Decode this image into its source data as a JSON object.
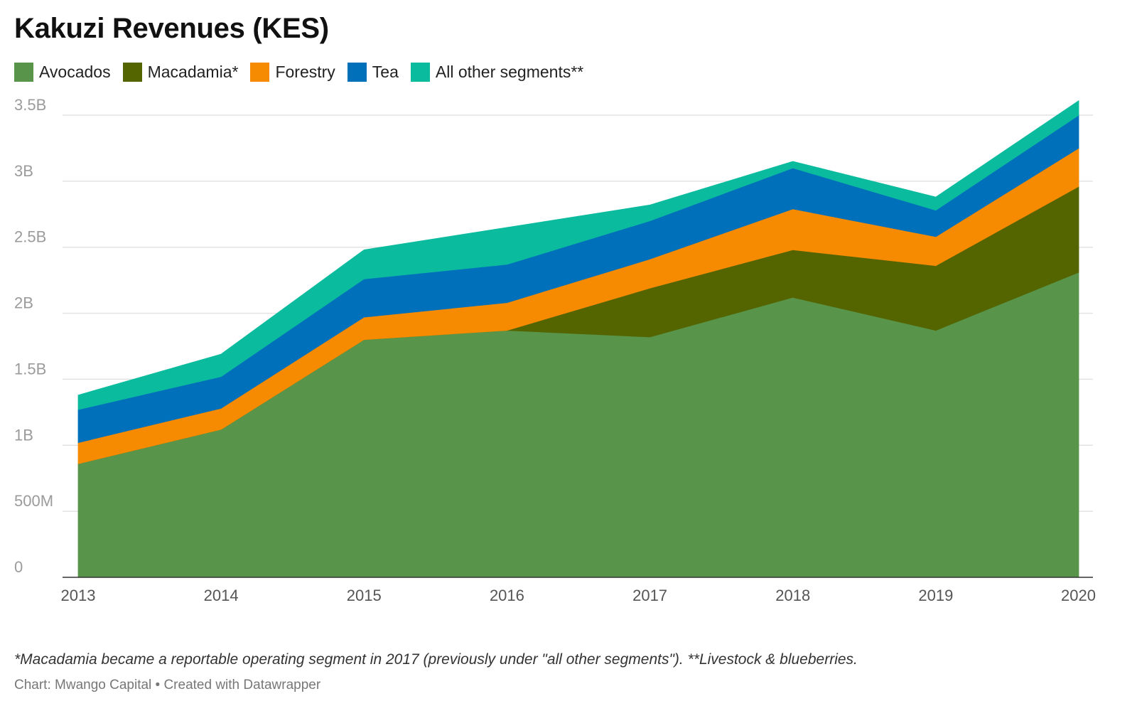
{
  "title": "Kakuzi Revenues (KES)",
  "footnote": "*Macadamia became a reportable operating segment in 2017 (previously under \"all other segments\"). **Livestock & blueberries.",
  "credit": "Chart: Mwango Capital • Created with Datawrapper",
  "legend": [
    {
      "label": "Avocados",
      "color": "#58954a"
    },
    {
      "label": "Macadamia*",
      "color": "#546500"
    },
    {
      "label": "Forestry",
      "color": "#f68a00"
    },
    {
      "label": "Tea",
      "color": "#0070bb"
    },
    {
      "label": "All other segments**",
      "color": "#0bbb9e"
    }
  ],
  "chart_data": {
    "type": "area",
    "stacked": true,
    "x": [
      "2013",
      "2014",
      "2015",
      "2016",
      "2017",
      "2018",
      "2019",
      "2020"
    ],
    "series": [
      {
        "name": "Avocados",
        "color": "#58954a",
        "values": [
          860000000,
          1120000000,
          1800000000,
          1870000000,
          1820000000,
          2120000000,
          1870000000,
          2310000000
        ]
      },
      {
        "name": "Macadamia*",
        "color": "#546500",
        "values": [
          0,
          0,
          0,
          0,
          370000000,
          360000000,
          490000000,
          650000000
        ]
      },
      {
        "name": "Forestry",
        "color": "#f68a00",
        "values": [
          160000000,
          160000000,
          170000000,
          210000000,
          220000000,
          310000000,
          220000000,
          290000000
        ]
      },
      {
        "name": "Tea",
        "color": "#0070bb",
        "values": [
          250000000,
          240000000,
          290000000,
          290000000,
          290000000,
          310000000,
          200000000,
          250000000
        ]
      },
      {
        "name": "All other segments**",
        "color": "#0bbb9e",
        "values": [
          110000000,
          170000000,
          220000000,
          280000000,
          120000000,
          50000000,
          100000000,
          110000000
        ]
      }
    ],
    "ylim": [
      0,
      3500000000
    ],
    "y_ticks": [
      {
        "value": 0,
        "label": "0"
      },
      {
        "value": 500000000,
        "label": "500M"
      },
      {
        "value": 1000000000,
        "label": "1B"
      },
      {
        "value": 1500000000,
        "label": "1.5B"
      },
      {
        "value": 2000000000,
        "label": "2B"
      },
      {
        "value": 2500000000,
        "label": "2.5B"
      },
      {
        "value": 3000000000,
        "label": "3B"
      },
      {
        "value": 3500000000,
        "label": "3.5B"
      }
    ],
    "grid": true,
    "legend_position": "top-left"
  }
}
